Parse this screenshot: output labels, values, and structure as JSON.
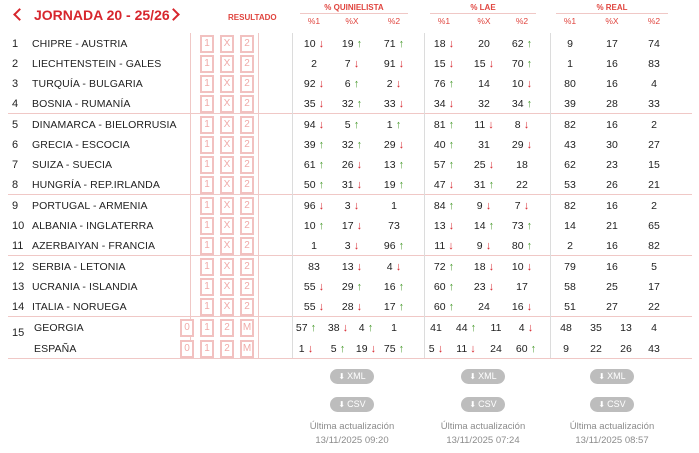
{
  "header": {
    "title": "JORNADA 20 - 25/26",
    "resultado_label": "RESULTADO",
    "groups": [
      {
        "label": "% QUINIELISTA",
        "subs": [
          "%1",
          "%X",
          "%2"
        ]
      },
      {
        "label": "% LAE",
        "subs": [
          "%1",
          "%X",
          "%2"
        ]
      },
      {
        "label": "% REAL",
        "subs": [
          "%1",
          "%X",
          "%2"
        ]
      }
    ]
  },
  "result_options": [
    "1",
    "X",
    "2"
  ],
  "pleno_options": [
    "0",
    "1",
    "2",
    "M"
  ],
  "matches": [
    {
      "num": "1",
      "name": "CHIPRE - AUSTRIA",
      "q": [
        [
          "10",
          "dn"
        ],
        [
          "19",
          "up"
        ],
        [
          "71",
          "up"
        ]
      ],
      "lae": [
        [
          "18",
          "dn"
        ],
        [
          "20",
          ""
        ],
        [
          "62",
          "up"
        ]
      ],
      "real": [
        "9",
        "17",
        "74"
      ]
    },
    {
      "num": "2",
      "name": "LIECHTENSTEIN - GALES",
      "q": [
        [
          "2",
          ""
        ],
        [
          "7",
          "dn"
        ],
        [
          "91",
          "dn"
        ]
      ],
      "lae": [
        [
          "15",
          "dn"
        ],
        [
          "15",
          "dn"
        ],
        [
          "70",
          "up"
        ]
      ],
      "real": [
        "1",
        "16",
        "83"
      ]
    },
    {
      "num": "3",
      "name": "TURQUÍA - BULGARIA",
      "q": [
        [
          "92",
          "dn"
        ],
        [
          "6",
          "up"
        ],
        [
          "2",
          "dn"
        ]
      ],
      "lae": [
        [
          "76",
          "up"
        ],
        [
          "14",
          ""
        ],
        [
          "10",
          "dn"
        ]
      ],
      "real": [
        "80",
        "16",
        "4"
      ]
    },
    {
      "num": "4",
      "name": "BOSNIA - RUMANÍA",
      "q": [
        [
          "35",
          "dn"
        ],
        [
          "32",
          "up"
        ],
        [
          "33",
          "dn"
        ]
      ],
      "lae": [
        [
          "34",
          "dn"
        ],
        [
          "32",
          ""
        ],
        [
          "34",
          "up"
        ]
      ],
      "real": [
        "39",
        "28",
        "33"
      ]
    },
    {
      "num": "5",
      "name": "DINAMARCA - BIELORRUSIA",
      "q": [
        [
          "94",
          "dn"
        ],
        [
          "5",
          "up"
        ],
        [
          "1",
          "up"
        ]
      ],
      "lae": [
        [
          "81",
          "up"
        ],
        [
          "11",
          "dn"
        ],
        [
          "8",
          "dn"
        ]
      ],
      "real": [
        "82",
        "16",
        "2"
      ]
    },
    {
      "num": "6",
      "name": "GRECIA - ESCOCIA",
      "q": [
        [
          "39",
          "up"
        ],
        [
          "32",
          "up"
        ],
        [
          "29",
          "dn"
        ]
      ],
      "lae": [
        [
          "40",
          "up"
        ],
        [
          "31",
          ""
        ],
        [
          "29",
          "dn"
        ]
      ],
      "real": [
        "43",
        "30",
        "27"
      ]
    },
    {
      "num": "7",
      "name": "SUIZA - SUECIA",
      "q": [
        [
          "61",
          "up"
        ],
        [
          "26",
          "dn"
        ],
        [
          "13",
          "up"
        ]
      ],
      "lae": [
        [
          "57",
          "up"
        ],
        [
          "25",
          "dn"
        ],
        [
          "18",
          ""
        ]
      ],
      "real": [
        "62",
        "23",
        "15"
      ]
    },
    {
      "num": "8",
      "name": "HUNGRÍA - REP.IRLANDA",
      "q": [
        [
          "50",
          "up"
        ],
        [
          "31",
          "dn"
        ],
        [
          "19",
          "up"
        ]
      ],
      "lae": [
        [
          "47",
          "dn"
        ],
        [
          "31",
          "up"
        ],
        [
          "22",
          ""
        ]
      ],
      "real": [
        "53",
        "26",
        "21"
      ]
    },
    {
      "num": "9",
      "name": "PORTUGAL - ARMENIA",
      "q": [
        [
          "96",
          "dn"
        ],
        [
          "3",
          "dn"
        ],
        [
          "1",
          ""
        ]
      ],
      "lae": [
        [
          "84",
          "up"
        ],
        [
          "9",
          "dn"
        ],
        [
          "7",
          "dn"
        ]
      ],
      "real": [
        "82",
        "16",
        "2"
      ]
    },
    {
      "num": "10",
      "name": "ALBANIA - INGLATERRA",
      "q": [
        [
          "10",
          "up"
        ],
        [
          "17",
          "dn"
        ],
        [
          "73",
          ""
        ]
      ],
      "lae": [
        [
          "13",
          "dn"
        ],
        [
          "14",
          "up"
        ],
        [
          "73",
          "up"
        ]
      ],
      "real": [
        "14",
        "21",
        "65"
      ]
    },
    {
      "num": "11",
      "name": "AZERBAIYAN - FRANCIA",
      "q": [
        [
          "1",
          ""
        ],
        [
          "3",
          "dn"
        ],
        [
          "96",
          "up"
        ]
      ],
      "lae": [
        [
          "11",
          "dn"
        ],
        [
          "9",
          "dn"
        ],
        [
          "80",
          "up"
        ]
      ],
      "real": [
        "2",
        "16",
        "82"
      ]
    },
    {
      "num": "12",
      "name": "SERBIA - LETONIA",
      "q": [
        [
          "83",
          ""
        ],
        [
          "13",
          "dn"
        ],
        [
          "4",
          "dn"
        ]
      ],
      "lae": [
        [
          "72",
          "up"
        ],
        [
          "18",
          "dn"
        ],
        [
          "10",
          "dn"
        ]
      ],
      "real": [
        "79",
        "16",
        "5"
      ]
    },
    {
      "num": "13",
      "name": "UCRANIA - ISLANDIA",
      "q": [
        [
          "55",
          "dn"
        ],
        [
          "29",
          "up"
        ],
        [
          "16",
          "up"
        ]
      ],
      "lae": [
        [
          "60",
          "up"
        ],
        [
          "23",
          "dn"
        ],
        [
          "17",
          ""
        ]
      ],
      "real": [
        "58",
        "25",
        "17"
      ]
    },
    {
      "num": "14",
      "name": "ITALIA - NORUEGA",
      "q": [
        [
          "55",
          "dn"
        ],
        [
          "28",
          "dn"
        ],
        [
          "17",
          "up"
        ]
      ],
      "lae": [
        [
          "60",
          "up"
        ],
        [
          "24",
          ""
        ],
        [
          "16",
          "dn"
        ]
      ],
      "real": [
        "51",
        "27",
        "22"
      ]
    }
  ],
  "pleno": {
    "num": "15",
    "teams": [
      {
        "name": "GEORGIA",
        "q": [
          [
            "57",
            "up"
          ],
          [
            "38",
            "dn"
          ],
          [
            "4",
            "up"
          ],
          [
            "1",
            ""
          ]
        ],
        "lae": [
          [
            "41",
            ""
          ],
          [
            "44",
            "up"
          ],
          [
            "11",
            ""
          ],
          [
            "4",
            "dn"
          ]
        ],
        "real": [
          "48",
          "35",
          "13",
          "4"
        ]
      },
      {
        "name": "ESPAÑA",
        "q": [
          [
            "1",
            "dn"
          ],
          [
            "5",
            "up"
          ],
          [
            "19",
            "dn"
          ],
          [
            "75",
            "up"
          ]
        ],
        "lae": [
          [
            "5",
            "dn"
          ],
          [
            "11",
            "dn"
          ],
          [
            "24",
            ""
          ],
          [
            "60",
            "up"
          ]
        ],
        "real": [
          "9",
          "22",
          "26",
          "43"
        ]
      }
    ]
  },
  "footer": {
    "xml": "XML",
    "csv": "CSV",
    "upd_label": "Última actualización",
    "updates": [
      "13/11/2025 09:20",
      "13/11/2025 07:24",
      "13/11/2025 08:57"
    ]
  }
}
